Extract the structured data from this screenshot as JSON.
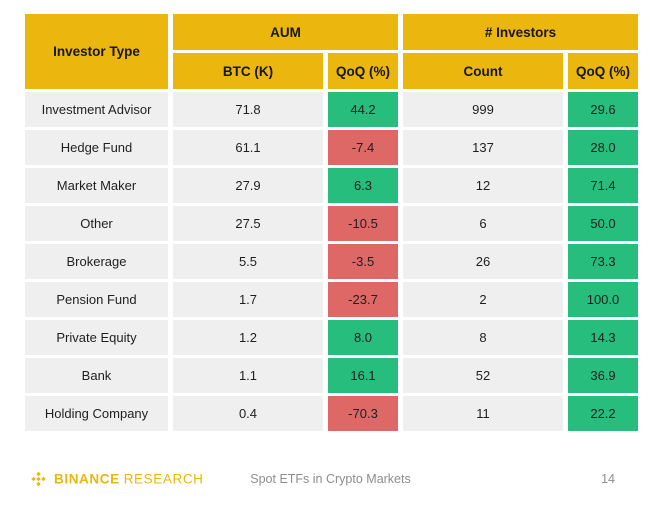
{
  "table": {
    "header": {
      "investor_type": "Investor Type",
      "aum_group": "AUM",
      "investors_group": "# Investors",
      "btc_col": "BTC (K)",
      "aum_qoq_col": "QoQ (%)",
      "count_col": "Count",
      "inv_qoq_col": "QoQ (%)"
    },
    "rows": [
      {
        "type": "Investment Advisor",
        "btc": "71.8",
        "aum_qoq": "44.2",
        "count": "999",
        "inv_qoq": "29.6"
      },
      {
        "type": "Hedge Fund",
        "btc": "61.1",
        "aum_qoq": "-7.4",
        "count": "137",
        "inv_qoq": "28.0"
      },
      {
        "type": "Market Maker",
        "btc": "27.9",
        "aum_qoq": "6.3",
        "count": "12",
        "inv_qoq": "71.4"
      },
      {
        "type": "Other",
        "btc": "27.5",
        "aum_qoq": "-10.5",
        "count": "6",
        "inv_qoq": "50.0"
      },
      {
        "type": "Brokerage",
        "btc": "5.5",
        "aum_qoq": "-3.5",
        "count": "26",
        "inv_qoq": "73.3"
      },
      {
        "type": "Pension Fund",
        "btc": "1.7",
        "aum_qoq": "-23.7",
        "count": "2",
        "inv_qoq": "100.0"
      },
      {
        "type": "Private Equity",
        "btc": "1.2",
        "aum_qoq": "8.0",
        "count": "8",
        "inv_qoq": "14.3"
      },
      {
        "type": "Bank",
        "btc": "1.1",
        "aum_qoq": "16.1",
        "count": "52",
        "inv_qoq": "36.9"
      },
      {
        "type": "Holding Company",
        "btc": "0.4",
        "aum_qoq": "-70.3",
        "count": "11",
        "inv_qoq": "22.2"
      }
    ]
  },
  "footer": {
    "brand_bold": "BINANCE",
    "brand_light": "RESEARCH",
    "title": "Spot ETFs in Crypto Markets",
    "page_number": "14"
  },
  "colors": {
    "gold": "#EBB60D",
    "green": "#27BD7D",
    "red": "#DD6865",
    "row_bg": "#EFEFEF"
  }
}
